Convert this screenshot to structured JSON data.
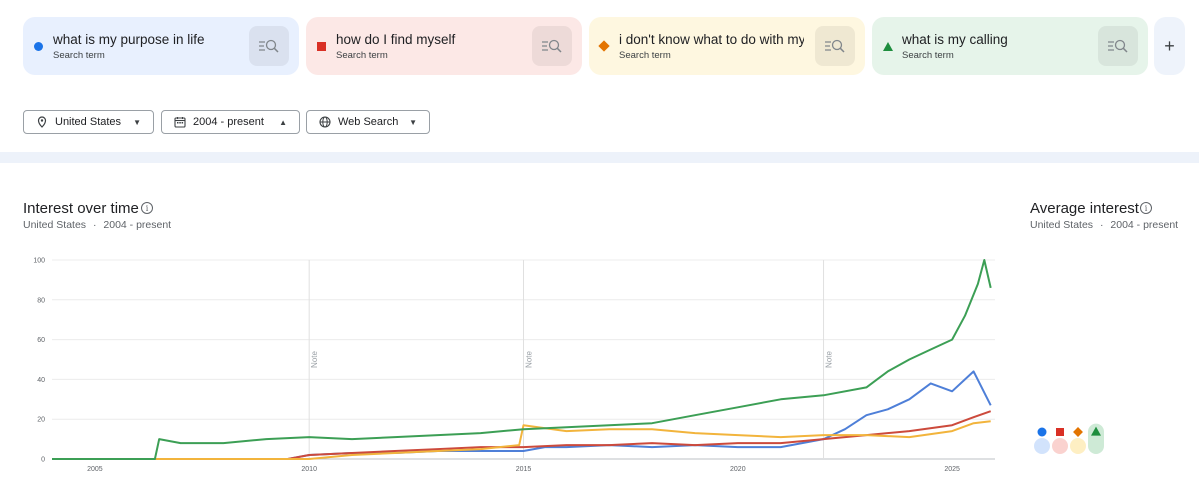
{
  "search_terms": [
    {
      "text": "what is my purpose in life",
      "sub": "Search term",
      "color": "#1a73e8",
      "bg": "#e8f0fe",
      "shape": "circle"
    },
    {
      "text": "how do I find myself",
      "sub": "Search term",
      "color": "#d93025",
      "bg": "#fce8e6",
      "shape": "square"
    },
    {
      "text": "i don't know what to do with my life",
      "sub": "Search term",
      "color": "#e37400",
      "bg": "#fef7e0",
      "shape": "diamond"
    },
    {
      "text": "what is my calling",
      "sub": "Search term",
      "color": "#1e8e3e",
      "bg": "#e6f4ea",
      "shape": "triangle"
    }
  ],
  "add_label": "+",
  "filters": {
    "region": "United States",
    "time": "2004 - present",
    "property": "Web Search"
  },
  "interest_over_time": {
    "title": "Interest over time",
    "subtitle_region": "United States",
    "subtitle_sep": "·",
    "subtitle_time": "2004 - present"
  },
  "average_interest": {
    "title": "Average interest",
    "subtitle_region": "United States",
    "subtitle_sep": "·",
    "subtitle_time": "2004 - present"
  },
  "chart_data": {
    "type": "line",
    "y_ticks": [
      "100",
      "80",
      "60",
      "40",
      "20",
      "0"
    ],
    "x_ticks": [
      "2005",
      "2010",
      "2015",
      "2020",
      "2025"
    ],
    "ylim": [
      0,
      100
    ],
    "xlim": [
      2004.0,
      2026.0
    ],
    "note_label": "Note",
    "notes": [
      2010.0,
      2015.0,
      2022.0
    ],
    "grid": true,
    "series": [
      {
        "color": "#4e7fd8",
        "points": [
          [
            2004,
            0
          ],
          [
            2009.5,
            0
          ],
          [
            2010,
            2
          ],
          [
            2011,
            3
          ],
          [
            2012,
            3
          ],
          [
            2013,
            4
          ],
          [
            2014,
            4
          ],
          [
            2015,
            4
          ],
          [
            2015.5,
            6
          ],
          [
            2016,
            6
          ],
          [
            2017,
            7
          ],
          [
            2018,
            6
          ],
          [
            2019,
            7
          ],
          [
            2020,
            6
          ],
          [
            2021,
            6
          ],
          [
            2021.5,
            8
          ],
          [
            2022,
            10
          ],
          [
            2022.5,
            15
          ],
          [
            2023,
            22
          ],
          [
            2023.5,
            25
          ],
          [
            2024,
            30
          ],
          [
            2024.5,
            38
          ],
          [
            2025,
            34
          ],
          [
            2025.5,
            44
          ],
          [
            2025.9,
            27
          ]
        ]
      },
      {
        "color": "#cc4a3c",
        "points": [
          [
            2004,
            0
          ],
          [
            2009.5,
            0
          ],
          [
            2010,
            2
          ],
          [
            2011,
            3
          ],
          [
            2012,
            4
          ],
          [
            2013,
            5
          ],
          [
            2014,
            6
          ],
          [
            2015,
            6
          ],
          [
            2016,
            7
          ],
          [
            2017,
            7
          ],
          [
            2018,
            8
          ],
          [
            2019,
            7
          ],
          [
            2020,
            8
          ],
          [
            2021,
            8
          ],
          [
            2022,
            10
          ],
          [
            2023,
            12
          ],
          [
            2024,
            14
          ],
          [
            2025,
            17
          ],
          [
            2025.5,
            21
          ],
          [
            2025.9,
            24
          ]
        ]
      },
      {
        "color": "#f2b43c",
        "points": [
          [
            2004,
            0
          ],
          [
            2010,
            0
          ],
          [
            2010.5,
            1
          ],
          [
            2011,
            2
          ],
          [
            2012,
            3
          ],
          [
            2013,
            4
          ],
          [
            2014,
            5
          ],
          [
            2014.9,
            7
          ],
          [
            2015,
            17
          ],
          [
            2016,
            14
          ],
          [
            2017,
            15
          ],
          [
            2018,
            15
          ],
          [
            2019,
            13
          ],
          [
            2020,
            12
          ],
          [
            2021,
            11
          ],
          [
            2022,
            12
          ],
          [
            2023,
            12
          ],
          [
            2024,
            11
          ],
          [
            2025,
            14
          ],
          [
            2025.5,
            18
          ],
          [
            2025.9,
            19
          ]
        ]
      },
      {
        "color": "#3c9f55",
        "points": [
          [
            2004,
            0
          ],
          [
            2006.4,
            0
          ],
          [
            2006.5,
            10
          ],
          [
            2007,
            8
          ],
          [
            2008,
            8
          ],
          [
            2009,
            10
          ],
          [
            2010,
            11
          ],
          [
            2011,
            10
          ],
          [
            2012,
            11
          ],
          [
            2013,
            12
          ],
          [
            2014,
            13
          ],
          [
            2015,
            15
          ],
          [
            2016,
            16
          ],
          [
            2017,
            17
          ],
          [
            2018,
            18
          ],
          [
            2019,
            22
          ],
          [
            2020,
            26
          ],
          [
            2021,
            30
          ],
          [
            2022,
            32
          ],
          [
            2023,
            36
          ],
          [
            2023.5,
            44
          ],
          [
            2024,
            50
          ],
          [
            2024.5,
            55
          ],
          [
            2025,
            60
          ],
          [
            2025.3,
            72
          ],
          [
            2025.6,
            88
          ],
          [
            2025.75,
            100
          ],
          [
            2025.9,
            86
          ]
        ]
      }
    ],
    "average": [
      {
        "shape": "circle",
        "color": "#1a73e8",
        "bg": "#d2e3fc",
        "value": 8
      },
      {
        "shape": "square",
        "color": "#d93025",
        "bg": "#fad2cf",
        "value": 8
      },
      {
        "shape": "diamond",
        "color": "#e37400",
        "bg": "#feefc3",
        "value": 8
      },
      {
        "shape": "triangle",
        "color": "#1e8e3e",
        "bg": "#ceead6",
        "value": 19
      }
    ]
  }
}
